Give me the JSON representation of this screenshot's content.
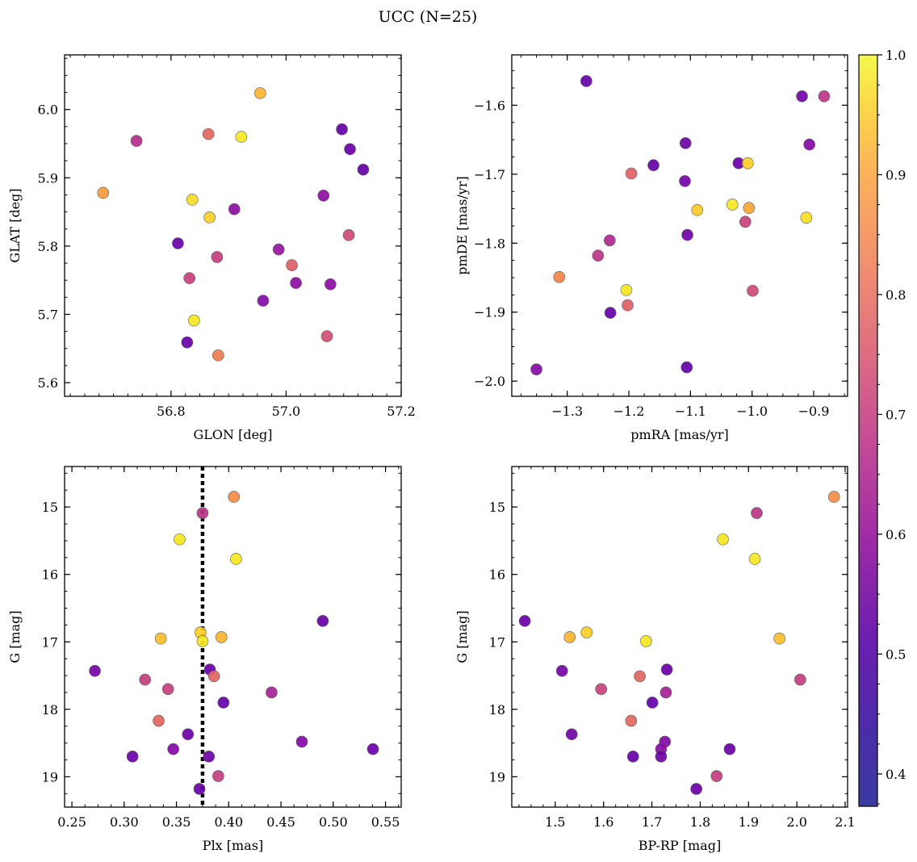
{
  "figure": {
    "title": "UCC (N=25)"
  },
  "colormap": {
    "name": "plasma",
    "range": [
      0.373,
      1.0
    ],
    "ticks": [
      "0.4",
      "0.5",
      "0.6",
      "0.7",
      "0.8",
      "0.9",
      "1.0"
    ],
    "tick_values": [
      0.4,
      0.5,
      0.6,
      0.7,
      0.8,
      0.9,
      1.0
    ]
  },
  "chart_data": [
    {
      "type": "scatter",
      "id": "glon-glat",
      "xlabel": "GLON [deg]",
      "ylabel": "GLAT [deg]",
      "xlim": [
        56.615,
        57.2
      ],
      "ylim": [
        5.58,
        6.08
      ],
      "xticks": [
        56.8,
        57.0,
        57.2
      ],
      "xtick_labels": [
        "56.8",
        "57.0",
        "57.2"
      ],
      "yticks": [
        5.6,
        5.7,
        5.8,
        5.9,
        6.0
      ],
      "ytick_labels": [
        "5.6",
        "5.7",
        "5.8",
        "5.9",
        "6.0"
      ],
      "x_minor_step": 0.025,
      "y_minor_step": 0.025,
      "points": [
        {
          "x": 56.955,
          "y": 6.024,
          "c": 0.88
        },
        {
          "x": 56.865,
          "y": 5.964,
          "c": 0.72
        },
        {
          "x": 56.922,
          "y": 5.96,
          "c": 0.97
        },
        {
          "x": 56.74,
          "y": 5.954,
          "c": 0.58
        },
        {
          "x": 57.097,
          "y": 5.971,
          "c": 0.42
        },
        {
          "x": 57.111,
          "y": 5.942,
          "c": 0.43
        },
        {
          "x": 57.134,
          "y": 5.912,
          "c": 0.42
        },
        {
          "x": 56.682,
          "y": 5.878,
          "c": 0.83
        },
        {
          "x": 56.837,
          "y": 5.868,
          "c": 0.95
        },
        {
          "x": 56.867,
          "y": 5.842,
          "c": 0.93
        },
        {
          "x": 56.91,
          "y": 5.854,
          "c": 0.5
        },
        {
          "x": 57.065,
          "y": 5.874,
          "c": 0.5
        },
        {
          "x": 56.812,
          "y": 5.804,
          "c": 0.43
        },
        {
          "x": 56.987,
          "y": 5.795,
          "c": 0.52
        },
        {
          "x": 56.88,
          "y": 5.784,
          "c": 0.62
        },
        {
          "x": 57.01,
          "y": 5.772,
          "c": 0.7
        },
        {
          "x": 57.109,
          "y": 5.816,
          "c": 0.65
        },
        {
          "x": 56.832,
          "y": 5.753,
          "c": 0.63
        },
        {
          "x": 57.017,
          "y": 5.746,
          "c": 0.5
        },
        {
          "x": 57.077,
          "y": 5.744,
          "c": 0.5
        },
        {
          "x": 56.96,
          "y": 5.72,
          "c": 0.48
        },
        {
          "x": 56.84,
          "y": 5.691,
          "c": 0.97
        },
        {
          "x": 57.071,
          "y": 5.668,
          "c": 0.66
        },
        {
          "x": 56.828,
          "y": 5.659,
          "c": 0.43
        },
        {
          "x": 56.882,
          "y": 5.64,
          "c": 0.77
        }
      ]
    },
    {
      "type": "scatter",
      "id": "pmra-pmde",
      "xlabel": "pmRA [mas/yr]",
      "ylabel": "pmDE [mas/yr]",
      "xlim": [
        -1.39,
        -0.845
      ],
      "ylim": [
        -2.022,
        -1.527
      ],
      "xticks": [
        -1.3,
        -1.2,
        -1.1,
        -1.0,
        -0.9
      ],
      "xtick_labels": [
        "−1.3",
        "−1.2",
        "−1.1",
        "−1.0",
        "−0.9"
      ],
      "yticks": [
        -2.0,
        -1.9,
        -1.8,
        -1.7,
        -1.6
      ],
      "ytick_labels": [
        "−2.0",
        "−1.9",
        "−1.8",
        "−1.7",
        "−1.6"
      ],
      "x_minor_step": 0.025,
      "y_minor_step": 0.025,
      "points": [
        {
          "x": -1.269,
          "y": -1.565,
          "c": 0.42
        },
        {
          "x": -0.919,
          "y": -1.587,
          "c": 0.45
        },
        {
          "x": -0.883,
          "y": -1.587,
          "c": 0.6
        },
        {
          "x": -1.108,
          "y": -1.655,
          "c": 0.44
        },
        {
          "x": -0.907,
          "y": -1.657,
          "c": 0.48
        },
        {
          "x": -1.16,
          "y": -1.687,
          "c": 0.42
        },
        {
          "x": -1.022,
          "y": -1.684,
          "c": 0.43
        },
        {
          "x": -1.007,
          "y": -1.684,
          "c": 0.93
        },
        {
          "x": -1.196,
          "y": -1.699,
          "c": 0.71
        },
        {
          "x": -1.109,
          "y": -1.71,
          "c": 0.45
        },
        {
          "x": -1.032,
          "y": -1.744,
          "c": 0.97
        },
        {
          "x": -1.005,
          "y": -1.749,
          "c": 0.86
        },
        {
          "x": -1.089,
          "y": -1.752,
          "c": 0.92
        },
        {
          "x": -0.912,
          "y": -1.763,
          "c": 0.96
        },
        {
          "x": -1.011,
          "y": -1.769,
          "c": 0.63
        },
        {
          "x": -1.105,
          "y": -1.788,
          "c": 0.44
        },
        {
          "x": -1.231,
          "y": -1.796,
          "c": 0.57
        },
        {
          "x": -1.25,
          "y": -1.818,
          "c": 0.6
        },
        {
          "x": -1.313,
          "y": -1.849,
          "c": 0.79
        },
        {
          "x": -1.204,
          "y": -1.868,
          "c": 0.97
        },
        {
          "x": -0.999,
          "y": -1.869,
          "c": 0.65
        },
        {
          "x": -1.202,
          "y": -1.89,
          "c": 0.7
        },
        {
          "x": -1.23,
          "y": -1.901,
          "c": 0.42
        },
        {
          "x": -1.106,
          "y": -1.98,
          "c": 0.42
        },
        {
          "x": -1.35,
          "y": -1.983,
          "c": 0.48
        }
      ]
    },
    {
      "type": "scatter",
      "id": "plx-g",
      "xlabel": "Plx [mas]",
      "ylabel": "G [mag]",
      "xlim": [
        0.243,
        0.565
      ],
      "ylim": [
        19.45,
        14.4
      ],
      "y_inverted": true,
      "xticks": [
        0.25,
        0.3,
        0.35,
        0.4,
        0.45,
        0.5,
        0.55
      ],
      "xtick_labels": [
        "0.25",
        "0.30",
        "0.35",
        "0.40",
        "0.45",
        "0.50",
        "0.55"
      ],
      "yticks": [
        15,
        16,
        17,
        18,
        19
      ],
      "ytick_labels": [
        "15",
        "16",
        "17",
        "18",
        "19"
      ],
      "x_minor_step": 0.0125,
      "y_minor_step": 0.25,
      "vline": {
        "x": 0.375,
        "style": "dotted"
      },
      "points": [
        {
          "x": 0.405,
          "y": 14.85,
          "c": 0.8
        },
        {
          "x": 0.375,
          "y": 15.09,
          "c": 0.6
        },
        {
          "x": 0.353,
          "y": 15.48,
          "c": 0.97
        },
        {
          "x": 0.407,
          "y": 15.77,
          "c": 0.97
        },
        {
          "x": 0.49,
          "y": 16.69,
          "c": 0.43
        },
        {
          "x": 0.373,
          "y": 16.86,
          "c": 0.93
        },
        {
          "x": 0.393,
          "y": 16.93,
          "c": 0.88
        },
        {
          "x": 0.335,
          "y": 16.95,
          "c": 0.9
        },
        {
          "x": 0.375,
          "y": 16.99,
          "c": 0.97
        },
        {
          "x": 0.272,
          "y": 17.43,
          "c": 0.45
        },
        {
          "x": 0.382,
          "y": 17.41,
          "c": 0.43
        },
        {
          "x": 0.386,
          "y": 17.51,
          "c": 0.72
        },
        {
          "x": 0.32,
          "y": 17.56,
          "c": 0.62
        },
        {
          "x": 0.342,
          "y": 17.7,
          "c": 0.63
        },
        {
          "x": 0.441,
          "y": 17.75,
          "c": 0.55
        },
        {
          "x": 0.395,
          "y": 17.9,
          "c": 0.42
        },
        {
          "x": 0.333,
          "y": 18.17,
          "c": 0.72
        },
        {
          "x": 0.361,
          "y": 18.37,
          "c": 0.44
        },
        {
          "x": 0.47,
          "y": 18.48,
          "c": 0.48
        },
        {
          "x": 0.538,
          "y": 18.59,
          "c": 0.43
        },
        {
          "x": 0.347,
          "y": 18.59,
          "c": 0.48
        },
        {
          "x": 0.308,
          "y": 18.7,
          "c": 0.43
        },
        {
          "x": 0.381,
          "y": 18.7,
          "c": 0.44
        },
        {
          "x": 0.39,
          "y": 18.99,
          "c": 0.62
        },
        {
          "x": 0.372,
          "y": 19.18,
          "c": 0.43
        }
      ]
    },
    {
      "type": "scatter",
      "id": "bprp-g",
      "xlabel": "BP-RP [mag]",
      "ylabel": "G [mag]",
      "xlim": [
        1.41,
        2.105
      ],
      "ylim": [
        19.45,
        14.4
      ],
      "y_inverted": true,
      "xticks": [
        1.5,
        1.6,
        1.7,
        1.8,
        1.9,
        2.0,
        2.1
      ],
      "xtick_labels": [
        "1.5",
        "1.6",
        "1.7",
        "1.8",
        "1.9",
        "2.0",
        "2.1"
      ],
      "yticks": [
        15,
        16,
        17,
        18,
        19
      ],
      "ytick_labels": [
        "15",
        "16",
        "17",
        "18",
        "19"
      ],
      "x_minor_step": 0.025,
      "y_minor_step": 0.25,
      "points": [
        {
          "x": 2.077,
          "y": 14.85,
          "c": 0.8
        },
        {
          "x": 1.917,
          "y": 15.09,
          "c": 0.6
        },
        {
          "x": 1.847,
          "y": 15.48,
          "c": 0.97
        },
        {
          "x": 1.913,
          "y": 15.77,
          "c": 0.97
        },
        {
          "x": 1.437,
          "y": 16.69,
          "c": 0.43
        },
        {
          "x": 1.565,
          "y": 16.86,
          "c": 0.93
        },
        {
          "x": 1.53,
          "y": 16.93,
          "c": 0.88
        },
        {
          "x": 1.964,
          "y": 16.95,
          "c": 0.9
        },
        {
          "x": 1.688,
          "y": 16.99,
          "c": 0.97
        },
        {
          "x": 1.514,
          "y": 17.43,
          "c": 0.45
        },
        {
          "x": 1.731,
          "y": 17.41,
          "c": 0.43
        },
        {
          "x": 1.675,
          "y": 17.51,
          "c": 0.72
        },
        {
          "x": 2.007,
          "y": 17.56,
          "c": 0.62
        },
        {
          "x": 1.595,
          "y": 17.7,
          "c": 0.63
        },
        {
          "x": 1.729,
          "y": 17.75,
          "c": 0.55
        },
        {
          "x": 1.701,
          "y": 17.9,
          "c": 0.42
        },
        {
          "x": 1.657,
          "y": 18.17,
          "c": 0.72
        },
        {
          "x": 1.534,
          "y": 18.37,
          "c": 0.44
        },
        {
          "x": 1.727,
          "y": 18.48,
          "c": 0.48
        },
        {
          "x": 1.861,
          "y": 18.59,
          "c": 0.43
        },
        {
          "x": 1.719,
          "y": 18.59,
          "c": 0.48
        },
        {
          "x": 1.661,
          "y": 18.7,
          "c": 0.43
        },
        {
          "x": 1.719,
          "y": 18.7,
          "c": 0.44
        },
        {
          "x": 1.834,
          "y": 18.99,
          "c": 0.62
        },
        {
          "x": 1.792,
          "y": 19.18,
          "c": 0.43
        }
      ]
    }
  ]
}
